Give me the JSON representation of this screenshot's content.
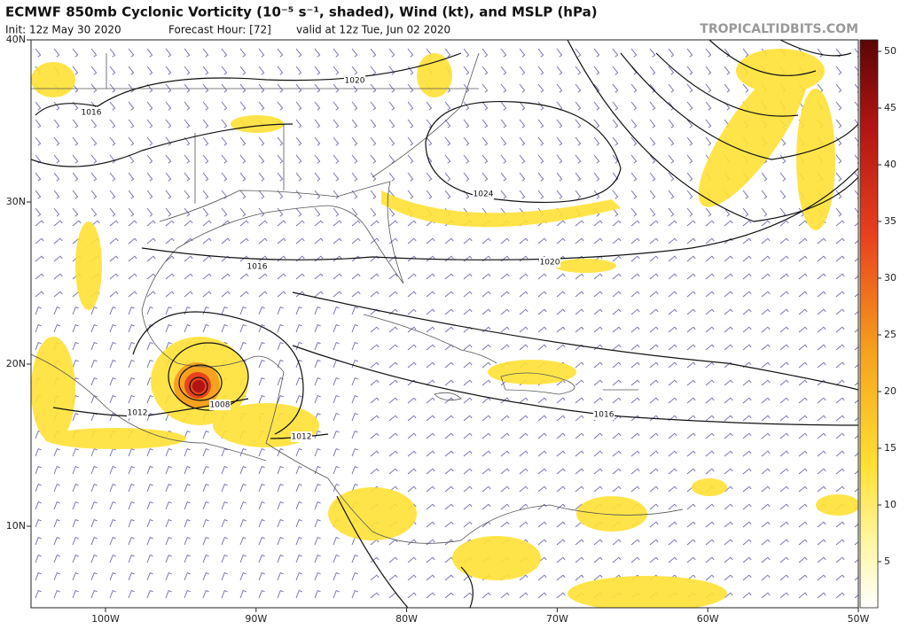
{
  "header": {
    "title": "ECMWF 850mb Cyclonic Vorticity (10⁻⁵ s⁻¹, shaded), Wind (kt), and MSLP (hPa)",
    "init": "Init: 12z May 30 2020",
    "forecast_hour": "Forecast Hour: [72]",
    "valid": "valid at 12z Tue, Jun 02 2020",
    "watermark": "TROPICALTIDBITS.COM"
  },
  "map": {
    "lat_ticks": [
      {
        "value": 40,
        "label": "40N"
      },
      {
        "value": 30,
        "label": "30N"
      },
      {
        "value": 20,
        "label": "20N"
      },
      {
        "value": 10,
        "label": "10N"
      }
    ],
    "lon_ticks": [
      {
        "value": -100,
        "label": "100W"
      },
      {
        "value": -90,
        "label": "90W"
      },
      {
        "value": -80,
        "label": "80W"
      },
      {
        "value": -70,
        "label": "70W"
      },
      {
        "value": -60,
        "label": "60W"
      },
      {
        "value": -50,
        "label": "50W"
      }
    ],
    "isobar_labels": [
      1016,
      1020,
      1024,
      1016,
      1020,
      1008,
      1012,
      1012,
      1016
    ]
  },
  "colorbar": {
    "ticks": [
      5,
      10,
      15,
      20,
      25,
      30,
      35,
      40,
      45,
      50
    ]
  }
}
